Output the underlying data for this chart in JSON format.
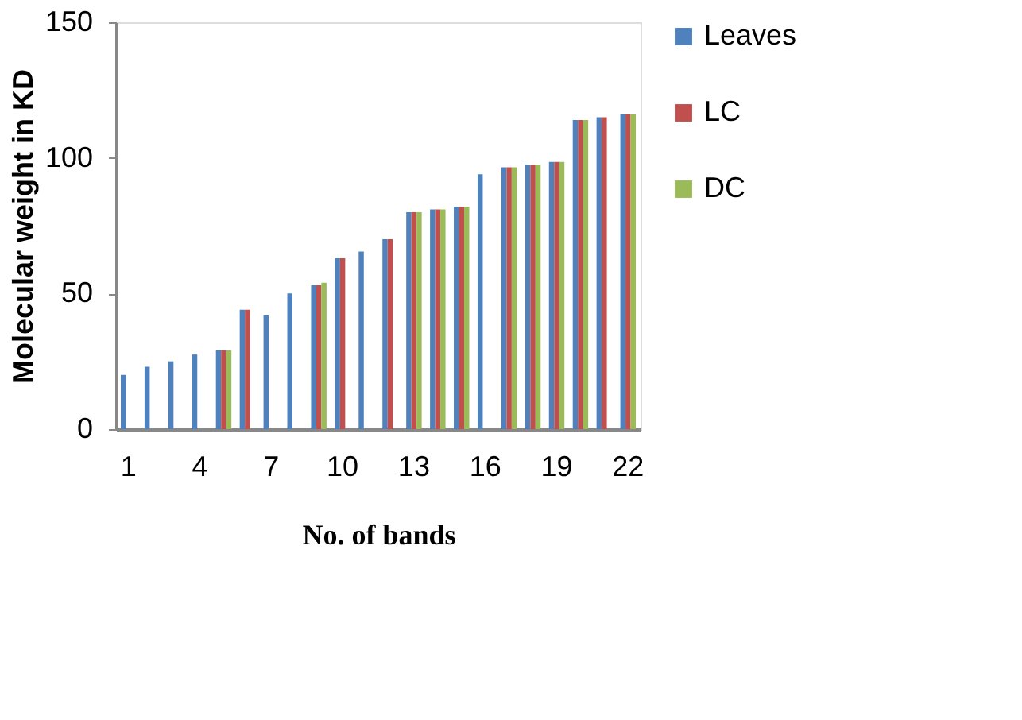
{
  "chart_data": {
    "type": "bar",
    "xlabel": "No. of bands",
    "ylabel": "Molecular weight in KD",
    "categories": [
      "1",
      null,
      null,
      "4",
      null,
      null,
      "7",
      null,
      null,
      "10",
      null,
      null,
      "13",
      null,
      null,
      "16",
      null,
      null,
      "19",
      null,
      null,
      "22"
    ],
    "series": [
      {
        "name": "Leaves",
        "color": "#4f81bd",
        "values": [
          20,
          23,
          25,
          27.5,
          29,
          44,
          42,
          50,
          53,
          63,
          65.5,
          70,
          80,
          81,
          82,
          94,
          96.5,
          97.5,
          98.5,
          114,
          115,
          116
        ]
      },
      {
        "name": "LC",
        "color": "#c0504d",
        "values": [
          null,
          null,
          null,
          null,
          29,
          44,
          null,
          null,
          53,
          63,
          null,
          70,
          80,
          81,
          82,
          null,
          96.5,
          97.5,
          98.5,
          114,
          115,
          116
        ]
      },
      {
        "name": "DC",
        "color": "#9bbb59",
        "values": [
          null,
          null,
          null,
          null,
          29,
          null,
          null,
          null,
          54,
          null,
          null,
          null,
          80,
          81,
          82,
          null,
          96.5,
          97.5,
          98.5,
          114,
          null,
          116
        ]
      }
    ],
    "ylim": [
      0,
      150
    ],
    "yticks": [
      0,
      50,
      100,
      150
    ],
    "grid": false,
    "legend": "right"
  }
}
